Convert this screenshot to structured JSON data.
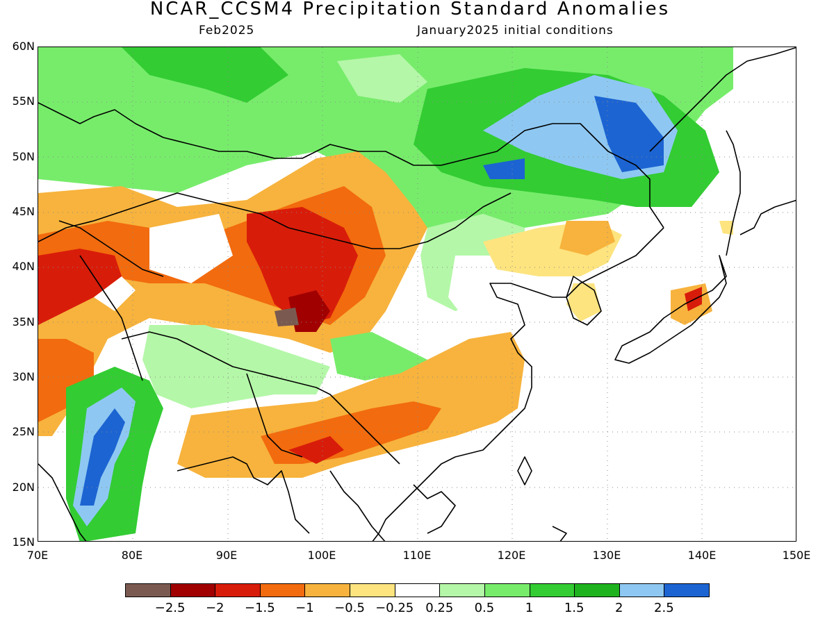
{
  "title": "NCAR_CCSM4 Precipitation Standard Anomalies",
  "subtitle_left": "Feb2025",
  "subtitle_right": "January2025 initial conditions",
  "lat_labels": [
    "60N",
    "55N",
    "50N",
    "45N",
    "40N",
    "35N",
    "30N",
    "25N",
    "20N",
    "15N"
  ],
  "lon_labels": [
    "70E",
    "80E",
    "90E",
    "100E",
    "110E",
    "120E",
    "130E",
    "140E",
    "150E"
  ],
  "colorbar": {
    "colors": [
      "#7a5a50",
      "#a00000",
      "#d81c0a",
      "#f26b0e",
      "#f7b33d",
      "#fde47f",
      "#ffffff",
      "#b4f7a8",
      "#77ec6b",
      "#33cc33",
      "#1fb21f",
      "#8ec8f2",
      "#1c64d2"
    ],
    "labels": [
      "-2.5",
      "-2",
      "-1.5",
      "-1",
      "-0.5",
      "-0.25",
      "0.25",
      "0.5",
      "1",
      "1.5",
      "2",
      "2.5"
    ]
  },
  "chart_data": {
    "type": "heatmap",
    "title": "NCAR_CCSM4 Precipitation Standard Anomalies",
    "subtitle": "Feb2025 — January2025 initial conditions",
    "x_range_lon": [
      70,
      150
    ],
    "y_range_lat": [
      15,
      60
    ],
    "levels": [
      -2.5,
      -2,
      -1.5,
      -1,
      -0.5,
      -0.25,
      0.25,
      0.5,
      1,
      1.5,
      2,
      2.5
    ],
    "grid": true
  }
}
